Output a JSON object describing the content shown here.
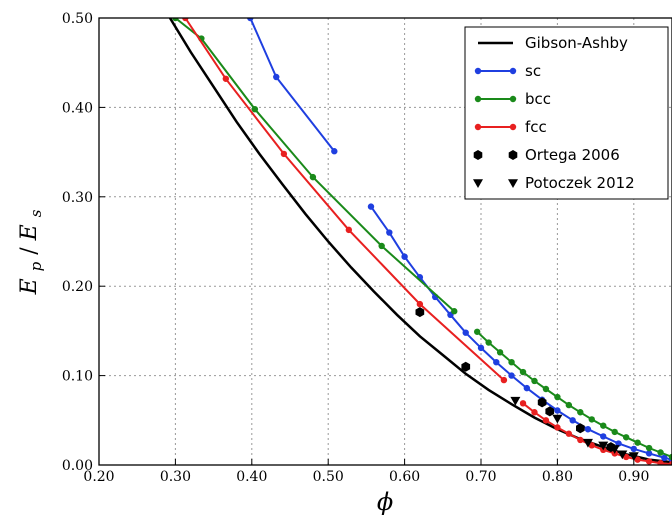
{
  "chart_data": {
    "type": "line",
    "xlabel": "ϕ",
    "ylabel_main": "E",
    "ylabel_sub_num": "p",
    "ylabel_slash": "/",
    "ylabel_sub_den": "s",
    "xlim": [
      0.2,
      0.95
    ],
    "ylim": [
      0.0,
      0.5
    ],
    "x_ticks": [
      0.2,
      0.3,
      0.4,
      0.5,
      0.6,
      0.7,
      0.8,
      0.9
    ],
    "x_tick_labels": [
      "0.20",
      "0.30",
      "0.40",
      "0.50",
      "0.60",
      "0.70",
      "0.80",
      "0.90"
    ],
    "y_ticks": [
      0.0,
      0.1,
      0.2,
      0.3,
      0.4,
      0.5
    ],
    "y_tick_labels": [
      "0.00",
      "0.10",
      "0.20",
      "0.30",
      "0.40",
      "0.50"
    ],
    "grid": true,
    "legend_position": "top-right",
    "series": [
      {
        "name": "Gibson-Ashby",
        "color": "#000000",
        "kind": "line",
        "x": [
          0.29,
          0.32,
          0.35,
          0.38,
          0.41,
          0.44,
          0.47,
          0.5,
          0.53,
          0.56,
          0.59,
          0.62,
          0.65,
          0.68,
          0.71,
          0.74,
          0.77,
          0.8,
          0.83,
          0.86,
          0.89,
          0.92,
          0.95
        ],
        "y": [
          0.504,
          0.462,
          0.423,
          0.384,
          0.348,
          0.314,
          0.281,
          0.25,
          0.221,
          0.194,
          0.168,
          0.144,
          0.123,
          0.102,
          0.084,
          0.068,
          0.053,
          0.04,
          0.029,
          0.02,
          0.012,
          0.006,
          0.003
        ]
      },
      {
        "name": "sc",
        "color": "#1f3fe0",
        "kind": "line-marker",
        "segments": [
          {
            "x": [
              0.398,
              0.432,
              0.508
            ],
            "y": [
              0.5,
              0.434,
              0.351
            ]
          },
          {
            "x": [
              0.556,
              0.58,
              0.6,
              0.62,
              0.64,
              0.66,
              0.68,
              0.7,
              0.72,
              0.74,
              0.76,
              0.78,
              0.8,
              0.82,
              0.84,
              0.86,
              0.88,
              0.9,
              0.92,
              0.94,
              0.95
            ],
            "y": [
              0.289,
              0.26,
              0.233,
              0.21,
              0.188,
              0.168,
              0.148,
              0.131,
              0.115,
              0.1,
              0.086,
              0.073,
              0.061,
              0.05,
              0.04,
              0.032,
              0.024,
              0.018,
              0.013,
              0.008,
              0.006
            ]
          }
        ]
      },
      {
        "name": "bcc",
        "color": "#1a8a1a",
        "kind": "line-marker",
        "segments": [
          {
            "x": [
              0.3,
              0.334,
              0.404,
              0.48,
              0.57,
              0.665
            ],
            "y": [
              0.5,
              0.477,
              0.398,
              0.322,
              0.245,
              0.172
            ]
          },
          {
            "x": [
              0.695,
              0.71,
              0.725,
              0.74,
              0.755,
              0.77,
              0.785,
              0.8,
              0.815,
              0.83,
              0.845,
              0.86,
              0.875,
              0.89,
              0.905,
              0.92,
              0.935,
              0.95
            ],
            "y": [
              0.149,
              0.137,
              0.126,
              0.115,
              0.104,
              0.094,
              0.085,
              0.076,
              0.067,
              0.059,
              0.051,
              0.044,
              0.037,
              0.031,
              0.025,
              0.019,
              0.014,
              0.009
            ]
          }
        ]
      },
      {
        "name": "fcc",
        "color": "#e82020",
        "kind": "line-marker",
        "segments": [
          {
            "x": [
              0.313,
              0.366,
              0.442,
              0.527,
              0.62,
              0.73
            ],
            "y": [
              0.5,
              0.432,
              0.348,
              0.263,
              0.18,
              0.095
            ]
          },
          {
            "x": [
              0.755,
              0.77,
              0.785,
              0.8,
              0.815,
              0.83,
              0.845,
              0.86,
              0.875,
              0.89,
              0.905,
              0.92,
              0.935,
              0.95
            ],
            "y": [
              0.069,
              0.059,
              0.05,
              0.042,
              0.035,
              0.028,
              0.022,
              0.017,
              0.013,
              0.009,
              0.006,
              0.004,
              0.002,
              0.001
            ]
          }
        ]
      },
      {
        "name": "Ortega 2006",
        "color": "#000000",
        "kind": "marker-hexagon",
        "x": [
          0.62,
          0.68,
          0.78,
          0.79,
          0.83,
          0.87
        ],
        "y": [
          0.171,
          0.11,
          0.07,
          0.06,
          0.041,
          0.02
        ]
      },
      {
        "name": "Potoczek 2012",
        "color": "#000000",
        "kind": "marker-triangle-down",
        "x": [
          0.745,
          0.8,
          0.84,
          0.86,
          0.875,
          0.885,
          0.9
        ],
        "y": [
          0.072,
          0.052,
          0.025,
          0.022,
          0.018,
          0.012,
          0.01
        ]
      }
    ]
  }
}
